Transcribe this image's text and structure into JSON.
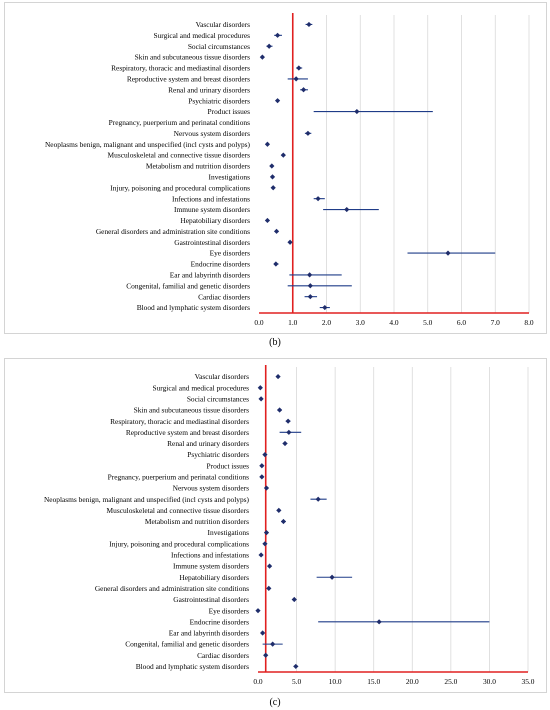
{
  "chart_data": [
    {
      "panel_label": "(b)",
      "type": "scatter",
      "subtype": "forest-plot",
      "title": "",
      "xlabel": "",
      "ylabel": "",
      "xlim": [
        0,
        8
      ],
      "xticks": [
        "0.0",
        "1.0",
        "2.0",
        "3.0",
        "4.0",
        "5.0",
        "6.0",
        "7.0",
        "8.0"
      ],
      "reference_line": 1.0,
      "grid": "vertical",
      "colors": {
        "point": "#1f2d6b",
        "ci": "#1f3c88",
        "reference": "#e02020",
        "grid": "#d9d9d9"
      },
      "categories": [
        "Vascular disorders",
        "Surgical and medical procedures",
        "Social circumstances",
        "Skin and subcutaneous tissue disorders",
        "Respiratory, thoracic and mediastinal disorders",
        "Reproductive system and breast disorders",
        "Renal and urinary disorders",
        "Psychiatric disorders",
        "Product issues",
        "Pregnancy, puerperium and perinatal conditions",
        "Nervous system disorders",
        "Neoplasms benign, malignant and unspecified (incl cysts and polyps)",
        "Musculoskeletal and connective tissue disorders",
        "Metabolism and nutrition disorders",
        "Investigations",
        "Injury, poisoning and procedural complications",
        "Infections and infestations",
        "Immune system disorders",
        "Hepatobiliary disorders",
        "General disorders and administration site conditions",
        "Gastrointestinal disorders",
        "Eye disorders",
        "Endocrine disorders",
        "Ear and labyrinth disorders",
        "Congenital, familial and genetic disorders",
        "Cardiac disorders",
        "Blood and lymphatic system disorders"
      ],
      "estimate": [
        1.48,
        0.55,
        0.3,
        0.1,
        1.18,
        1.1,
        1.32,
        0.55,
        2.9,
        null,
        1.45,
        0.25,
        0.72,
        0.38,
        0.4,
        0.42,
        1.75,
        2.6,
        0.25,
        0.52,
        0.92,
        5.6,
        0.5,
        1.5,
        1.52,
        1.52,
        1.95
      ],
      "ci_low": [
        1.38,
        0.45,
        0.22,
        0.08,
        1.1,
        0.85,
        1.22,
        0.5,
        1.62,
        null,
        1.36,
        0.22,
        0.66,
        0.34,
        0.36,
        0.38,
        1.62,
        1.9,
        0.22,
        0.48,
        0.88,
        4.4,
        0.44,
        0.9,
        0.85,
        1.35,
        1.8
      ],
      "ci_high": [
        1.58,
        0.68,
        0.4,
        0.12,
        1.28,
        1.45,
        1.45,
        0.6,
        5.15,
        null,
        1.55,
        0.28,
        0.78,
        0.42,
        0.44,
        0.46,
        1.95,
        3.55,
        0.28,
        0.56,
        0.96,
        7.0,
        0.58,
        2.45,
        2.75,
        1.72,
        2.1
      ]
    },
    {
      "panel_label": "(c)",
      "type": "scatter",
      "subtype": "forest-plot",
      "title": "",
      "xlabel": "",
      "ylabel": "",
      "xlim": [
        0,
        35
      ],
      "xticks": [
        "0.0",
        "5.0",
        "10.0",
        "15.0",
        "20.0",
        "25.0",
        "30.0",
        "35.0"
      ],
      "reference_line": 1.0,
      "grid": "vertical",
      "colors": {
        "point": "#1f2d6b",
        "ci": "#1f3c88",
        "reference": "#e02020",
        "grid": "#d9d9d9"
      },
      "categories": [
        "Vascular disorders",
        "Surgical and medical procedures",
        "Social circumstances",
        "Skin and subcutaneous tissue disorders",
        "Respiratory, thoracic and mediastinal disorders",
        "Reproductive system and breast disorders",
        "Renal and urinary disorders",
        "Psychiatric disorders",
        "Product issues",
        "Pregnancy, puerperium and perinatal conditions",
        "Nervous system disorders",
        "Neoplasms benign, malignant and unspecified (incl cysts and polyps)",
        "Musculoskeletal and connective tissue disorders",
        "Metabolism and nutrition disorders",
        "Investigations",
        "Injury, poisoning and procedural complications",
        "Infections and infestations",
        "Immune system disorders",
        "Hepatobiliary disorders",
        "General disorders and administration site conditions",
        "Gastrointestinal disorders",
        "Eye disorders",
        "Endocrine disorders",
        "Ear and labyrinth disorders",
        "Congenital, familial and genetic disorders",
        "Cardiac disorders",
        "Blood and lymphatic system disorders"
      ],
      "estimate": [
        2.6,
        0.3,
        0.4,
        2.8,
        3.9,
        4.0,
        3.5,
        0.9,
        0.5,
        0.5,
        1.1,
        7.8,
        2.7,
        3.3,
        1.1,
        0.9,
        0.4,
        1.5,
        9.6,
        1.4,
        4.7,
        0.0,
        15.7,
        0.6,
        1.9,
        1.0,
        4.9
      ],
      "ci_low": [
        2.4,
        0.25,
        0.35,
        2.5,
        3.6,
        2.8,
        3.2,
        0.8,
        0.45,
        0.45,
        1.0,
        6.8,
        2.5,
        3.0,
        1.0,
        0.8,
        0.35,
        1.3,
        7.6,
        1.3,
        4.4,
        0.0,
        7.8,
        0.5,
        0.6,
        0.9,
        4.6
      ],
      "ci_high": [
        2.8,
        0.35,
        0.45,
        3.1,
        4.2,
        5.6,
        3.8,
        1.0,
        0.55,
        0.55,
        1.2,
        8.9,
        2.9,
        3.6,
        1.2,
        1.0,
        0.45,
        1.7,
        12.2,
        1.5,
        5.0,
        0.0,
        30.0,
        0.7,
        3.2,
        1.1,
        5.2
      ]
    }
  ]
}
